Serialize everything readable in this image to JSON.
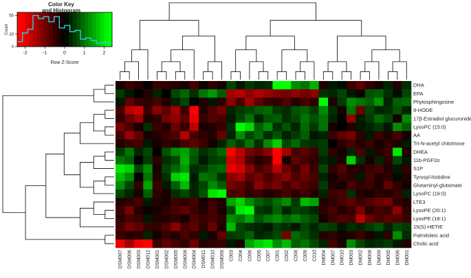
{
  "chart_data": {
    "type": "heatmap",
    "title": "",
    "color_key": {
      "title_line1": "Color Key",
      "title_line2": "and Histogram",
      "xlabel": "Row Z-Score",
      "ylabel": "Count",
      "x_ticks": [
        "-2",
        "-1",
        "0",
        "1",
        "2"
      ],
      "y_ticks": [
        "0",
        "20",
        "50"
      ],
      "z_range": [
        -2.4,
        2.4
      ],
      "colors": {
        "low": "#ff0000",
        "mid": "#000000",
        "high": "#00ff00",
        "histogram": "#33c9e0"
      },
      "histogram_counts": [
        8,
        22,
        28,
        50,
        45,
        48,
        40,
        48,
        30,
        34,
        24,
        26,
        12,
        14,
        10,
        6,
        7,
        6
      ]
    },
    "rows": [
      "DHA",
      "EPA",
      "Phytosphingosine",
      "9-HODE",
      "17β-Estradiol glucuronide",
      "LysoPC (15:0)",
      "AA",
      "Tri-N-acetyl chitotriose",
      "DHEA",
      "11b-PGF2α",
      "S1P",
      "Tyrosyl-histidine",
      "Glutaminyl-glutamate",
      "LysoPC (16:0)",
      "LTE3",
      "LysoPE (20:1)",
      "LysoPE (18:1)",
      "15(S)-HETrE",
      "Palmitoleic acid",
      "Cholic acid"
    ],
    "columns": [
      "DSM007",
      "DSM006",
      "DSM003",
      "DSM012",
      "DSM001",
      "DSM002",
      "DSM005",
      "DSM008",
      "DSM004",
      "DSM011",
      "DSM010",
      "DSM009",
      "C003",
      "C004",
      "C006",
      "C005",
      "C007",
      "C001",
      "C002",
      "C008",
      "C009",
      "C010",
      "DM004",
      "DM007",
      "DM010",
      "DM003",
      "DM002",
      "DM008",
      "DM009",
      "DM005",
      "DM006",
      "DM001"
    ],
    "values": [
      [
        -0.2,
        -0.5,
        -0.3,
        0.0,
        -0.5,
        -0.4,
        -0.3,
        -0.2,
        -0.6,
        -0.1,
        -0.4,
        -0.2,
        0.6,
        0.2,
        0.5,
        0.3,
        0.4,
        2.2,
        2.2,
        1.2,
        1.0,
        1.5,
        -0.3,
        0.2,
        0.1,
        -0.5,
        -0.8,
        -0.4,
        -0.2,
        0.3,
        -0.3,
        0.4
      ],
      [
        0.5,
        0.2,
        0.0,
        -0.3,
        0.3,
        0.0,
        0.6,
        0.9,
        0.4,
        1.0,
        1.3,
        0.8,
        -1.4,
        -1.6,
        -1.2,
        -1.5,
        -1.3,
        -1.1,
        -1.0,
        -1.2,
        -1.0,
        -1.2,
        0.4,
        0.3,
        0.6,
        0.2,
        -0.1,
        0.7,
        0.8,
        0.4,
        0.1,
        0.6
      ],
      [
        0.2,
        -0.8,
        -0.5,
        -0.4,
        -0.6,
        -0.3,
        0.3,
        0.6,
        0.0,
        -0.3,
        0.2,
        -0.4,
        -1.2,
        -0.6,
        -1.4,
        -0.8,
        -0.5,
        -0.4,
        -0.7,
        -0.3,
        -0.6,
        -0.4,
        2.2,
        -0.3,
        0.5,
        1.2,
        1.0,
        0.8,
        1.3,
        0.3,
        0.8,
        0.9
      ],
      [
        -0.6,
        -1.6,
        -1.8,
        -0.5,
        -1.2,
        -0.8,
        -1.4,
        -0.5,
        -2.4,
        -0.3,
        -0.7,
        -1.0,
        0.3,
        0.5,
        0.6,
        0.8,
        0.9,
        0.5,
        0.4,
        0.7,
        0.8,
        0.5,
        1.2,
        0.4,
        -0.2,
        1.0,
        -0.9,
        0.6,
        0.3,
        0.4,
        0.7,
        0.3
      ],
      [
        -0.4,
        -0.9,
        -1.3,
        -0.3,
        -0.4,
        -1.0,
        -1.2,
        -0.8,
        -2.0,
        -0.5,
        -0.7,
        -0.6,
        0.2,
        0.6,
        1.0,
        0.3,
        0.7,
        0.8,
        0.4,
        0.6,
        1.0,
        0.7,
        1.0,
        0.3,
        0.0,
        -1.2,
        0.2,
        0.5,
        0.9,
        0.6,
        -0.2,
        1.2
      ],
      [
        -1.0,
        -0.6,
        -0.2,
        0.4,
        -0.5,
        -0.3,
        -0.9,
        -0.4,
        -1.6,
        -0.2,
        -0.3,
        -0.5,
        0.4,
        2.2,
        1.9,
        0.8,
        1.2,
        0.4,
        0.7,
        0.3,
        0.9,
        0.5,
        1.0,
        -0.2,
        0.0,
        -0.3,
        0.2,
        0.3,
        0.5,
        0.2,
        1.2,
        0.8
      ],
      [
        -0.6,
        -1.3,
        -0.8,
        -0.2,
        -0.3,
        -0.5,
        -0.7,
        -1.5,
        -0.6,
        -0.4,
        -0.3,
        -0.9,
        0.3,
        1.2,
        0.6,
        0.9,
        0.4,
        0.7,
        0.3,
        0.5,
        0.8,
        0.2,
        0.3,
        -0.5,
        -0.8,
        -1.0,
        -0.4,
        0.2,
        -0.5,
        -0.3,
        -0.6,
        -0.2
      ],
      [
        -0.3,
        -0.5,
        -0.6,
        0.2,
        -0.2,
        -0.4,
        -0.3,
        -0.6,
        -0.8,
        -0.5,
        -0.2,
        0.3,
        0.8,
        0.5,
        1.0,
        0.4,
        1.2,
        1.8,
        0.6,
        0.9,
        0.5,
        0.4,
        0.5,
        0.0,
        -0.4,
        -0.6,
        -0.3,
        -0.5,
        -0.2,
        -0.4,
        -0.3,
        0.2
      ],
      [
        0.5,
        1.0,
        0.3,
        0.6,
        0.0,
        0.7,
        1.2,
        1.4,
        0.8,
        0.4,
        0.6,
        0.9,
        -2.2,
        -1.6,
        -1.0,
        -0.8,
        -1.2,
        -2.2,
        -1.4,
        -0.6,
        -0.8,
        -0.5,
        0.5,
        -0.4,
        -0.2,
        0.3,
        -0.6,
        0.2,
        -0.3,
        -0.5,
        2.0,
        -0.3
      ],
      [
        1.0,
        0.8,
        0.0,
        0.5,
        -0.4,
        0.4,
        0.6,
        1.5,
        0.7,
        0.2,
        0.5,
        0.6,
        -1.8,
        -1.5,
        -0.6,
        -0.3,
        -0.5,
        -2.4,
        -0.2,
        -0.8,
        -0.6,
        -0.4,
        0.3,
        0.2,
        -0.3,
        1.8,
        0.4,
        -0.2,
        0.3,
        -0.4,
        0.6,
        0.2
      ],
      [
        2.0,
        1.8,
        0.6,
        1.2,
        -0.2,
        0.6,
        0.9,
        1.3,
        0.4,
        0.5,
        0.8,
        0.9,
        -2.0,
        -1.8,
        -1.2,
        -0.6,
        -0.9,
        -1.6,
        -0.9,
        -0.5,
        -1.0,
        -0.5,
        0.6,
        -0.4,
        -0.7,
        -0.3,
        -0.3,
        -0.5,
        -0.6,
        -0.3,
        0.2,
        -0.4
      ],
      [
        1.6,
        1.2,
        0.0,
        1.0,
        -0.3,
        0.4,
        1.8,
        2.0,
        0.2,
        1.0,
        0.9,
        0.4,
        -1.2,
        -1.4,
        -0.8,
        -1.0,
        -0.6,
        -0.9,
        -1.2,
        -0.7,
        -0.9,
        -0.6,
        0.3,
        -0.2,
        -0.5,
        -0.4,
        0.2,
        -0.6,
        -0.3,
        -0.4,
        0.1,
        -0.3
      ],
      [
        1.2,
        0.6,
        -0.4,
        1.4,
        -0.5,
        0.2,
        0.8,
        1.6,
        0.3,
        0.6,
        1.2,
        0.8,
        -1.0,
        -0.8,
        -0.5,
        -1.2,
        -0.8,
        -1.0,
        -0.6,
        -0.9,
        -0.7,
        -0.5,
        0.5,
        -0.3,
        -0.2,
        -0.6,
        -0.4,
        -0.5,
        -0.3,
        -0.8,
        -0.4,
        -0.2
      ],
      [
        0.6,
        0.3,
        -0.2,
        0.8,
        -0.4,
        -0.2,
        0.4,
        0.6,
        0.3,
        0.7,
        2.0,
        2.2,
        -0.6,
        -0.7,
        -0.4,
        -0.5,
        -0.3,
        -0.4,
        -0.6,
        -0.4,
        -0.5,
        -0.3,
        0.3,
        -0.5,
        -0.6,
        0.4,
        -0.3,
        -0.2,
        -0.4,
        -0.3,
        -0.5,
        0.3
      ],
      [
        -0.3,
        -0.4,
        -0.6,
        0.2,
        -0.3,
        -0.2,
        -0.5,
        -0.4,
        -0.6,
        -0.2,
        -0.5,
        -0.3,
        1.4,
        1.8,
        1.2,
        0.8,
        0.6,
        0.9,
        1.2,
        0.5,
        1.6,
        1.4,
        -0.3,
        -0.4,
        -0.6,
        -0.8,
        -0.5,
        -0.7,
        -0.9,
        -1.0,
        -0.4,
        -0.3
      ],
      [
        -0.5,
        -1.0,
        -0.3,
        -0.1,
        -0.2,
        -0.4,
        -0.6,
        -0.8,
        -0.5,
        -0.3,
        -0.6,
        -0.2,
        0.6,
        2.0,
        2.2,
        0.5,
        0.4,
        0.8,
        0.3,
        0.6,
        0.5,
        0.3,
        -0.4,
        -0.6,
        -0.3,
        -0.5,
        -1.0,
        -0.4,
        -0.6,
        -0.5,
        -1.2,
        -0.4
      ],
      [
        -0.4,
        -0.6,
        -0.5,
        0.2,
        -0.3,
        -0.3,
        -0.4,
        -0.2,
        -0.7,
        -0.5,
        -0.6,
        -0.4,
        1.2,
        1.0,
        1.4,
        0.7,
        1.0,
        1.2,
        0.9,
        1.1,
        0.8,
        0.6,
        -0.2,
        -0.5,
        -0.7,
        -0.6,
        -1.6,
        -0.9,
        -0.6,
        -0.8,
        -0.7,
        -0.5
      ],
      [
        -0.6,
        -1.0,
        -0.8,
        -0.5,
        -0.4,
        -0.7,
        -1.2,
        -0.6,
        -0.8,
        -0.4,
        -0.9,
        -0.3,
        1.6,
        0.6,
        0.4,
        0.3,
        0.2,
        0.5,
        0.4,
        0.2,
        0.6,
        0.3,
        0.6,
        0.5,
        0.2,
        0.4,
        0.3,
        0.5,
        0.7,
        0.3,
        0.6,
        0.5
      ],
      [
        -0.5,
        -0.3,
        -0.4,
        0.3,
        -0.2,
        -0.5,
        -0.3,
        -0.6,
        -0.4,
        0.2,
        -0.2,
        -0.8,
        0.5,
        0.6,
        0.8,
        0.3,
        0.4,
        0.6,
        -1.0,
        0.9,
        0.7,
        0.4,
        -0.3,
        -0.4,
        -0.2,
        -0.3,
        -0.5,
        -0.2,
        0.2,
        -0.4,
        1.2,
        0.4
      ],
      [
        -2.0,
        -1.4,
        -2.0,
        -2.2,
        -0.5,
        -0.8,
        -0.6,
        -0.4,
        -0.9,
        -0.3,
        -0.4,
        -0.5,
        0.2,
        -0.2,
        1.4,
        1.8,
        2.0,
        1.2,
        1.6,
        0.8,
        1.0,
        0.6,
        0.3,
        -0.6,
        -0.2,
        1.2,
        0.6,
        0.3,
        0.4,
        0.5,
        0.2,
        -0.3
      ]
    ]
  }
}
